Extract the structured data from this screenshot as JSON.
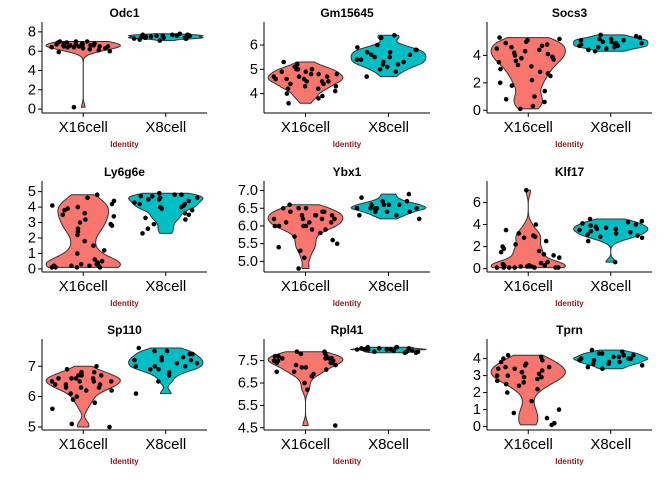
{
  "colors": {
    "group1": "#f8766d",
    "group2": "#00bfc4",
    "axis_title": "#8b1a1a",
    "point": "#000000",
    "outline": "#333333"
  },
  "chart_data": [
    {
      "type": "violin",
      "title": "Odc1",
      "xlabel": "Identity",
      "categories": [
        "X16cell",
        "X8cell"
      ],
      "yticks": [
        "0",
        "2",
        "4",
        "6",
        "8"
      ],
      "ylim": [
        -0.4,
        8.4
      ],
      "series": [
        {
          "group": "X16cell",
          "values": [
            6.4,
            6.5,
            6.6,
            6.7,
            6.8,
            6.9,
            7.0,
            6.3,
            6.5,
            6.6,
            6.8,
            7.0,
            6.2,
            6.4,
            6.6,
            6.7,
            6.9,
            6.1,
            6.5,
            6.8,
            6.3,
            6.6,
            7.0,
            6.4,
            6.7,
            5.9,
            6.0,
            6.5,
            0.2
          ]
        },
        {
          "group": "X8cell",
          "values": [
            7.3,
            7.4,
            7.5,
            7.6,
            7.7,
            7.2,
            7.4,
            7.6,
            7.8,
            7.3,
            7.5,
            7.7,
            7.1,
            7.4,
            7.6,
            7.5,
            7.3,
            7.7,
            7.4,
            7.6
          ]
        }
      ]
    },
    {
      "type": "violin",
      "title": "Gm15645",
      "xlabel": "Identity",
      "categories": [
        "X16cell",
        "X8cell"
      ],
      "yticks": [
        "4",
        "5",
        "6"
      ],
      "ylim": [
        3.2,
        6.7
      ],
      "series": [
        {
          "group": "X16cell",
          "values": [
            4.7,
            4.5,
            4.8,
            4.3,
            5.0,
            4.6,
            4.9,
            4.2,
            4.4,
            5.1,
            4.7,
            3.9,
            4.0,
            4.8,
            5.2,
            4.5,
            4.6,
            4.3,
            5.0,
            4.1,
            4.8,
            3.6,
            4.4,
            4.9,
            5.3,
            4.2,
            4.7,
            4.5,
            3.8,
            4.6,
            5.0
          ]
        },
        {
          "group": "X8cell",
          "values": [
            5.4,
            5.6,
            5.2,
            5.8,
            5.5,
            6.0,
            5.3,
            5.7,
            4.9,
            5.1,
            6.3,
            5.5,
            5.9,
            4.7,
            5.4,
            5.2,
            5.8,
            6.4,
            5.0,
            5.6,
            5.3,
            5.7
          ]
        }
      ]
    },
    {
      "type": "violin",
      "title": "Socs3",
      "xlabel": "Identity",
      "categories": [
        "X16cell",
        "X8cell"
      ],
      "yticks": [
        "0",
        "2",
        "4"
      ],
      "ylim": [
        -0.2,
        6.0
      ],
      "series": [
        {
          "group": "X16cell",
          "values": [
            4.5,
            4.2,
            3.9,
            5.0,
            3.5,
            4.7,
            2.8,
            3.2,
            4.4,
            5.2,
            1.0,
            0.8,
            4.1,
            3.0,
            2.2,
            4.9,
            3.6,
            1.8,
            0.3,
            4.3,
            5.1,
            2.5,
            3.8,
            0.6,
            4.6,
            3.3,
            1.4,
            4.0,
            2.0,
            5.3,
            3.7,
            4.8,
            0.1,
            2.7
          ]
        },
        {
          "group": "X8cell",
          "values": [
            4.7,
            4.9,
            5.1,
            4.5,
            5.3,
            4.8,
            4.6,
            5.0,
            5.2,
            4.4,
            4.9,
            5.4,
            4.7,
            5.0,
            4.3,
            5.1,
            4.8,
            5.5,
            4.6,
            5.2
          ]
        }
      ]
    },
    {
      "type": "violin",
      "title": "Ly6g6e",
      "xlabel": "Identity",
      "categories": [
        "X16cell",
        "X8cell"
      ],
      "yticks": [
        "0",
        "1",
        "2",
        "3",
        "4",
        "5"
      ],
      "ylim": [
        -0.2,
        5.3
      ],
      "series": [
        {
          "group": "X16cell",
          "values": [
            0.1,
            0.2,
            3.5,
            4.2,
            0.3,
            2.8,
            3.9,
            0.1,
            4.6,
            1.5,
            0.5,
            3.2,
            2.4,
            4.0,
            0.2,
            3.6,
            1.0,
            4.4,
            0.1,
            2.9,
            3.4,
            0.3,
            1.8,
            4.1,
            0.2,
            3.0,
            0.6,
            4.8,
            2.2,
            0.1,
            3.8,
            0.4,
            1.2,
            2.6,
            0.2
          ]
        },
        {
          "group": "X8cell",
          "values": [
            4.3,
            4.0,
            4.6,
            3.8,
            4.8,
            4.2,
            3.5,
            4.5,
            4.9,
            3.2,
            4.1,
            4.7,
            2.6,
            4.4,
            3.9,
            4.6,
            2.3,
            4.2,
            4.8,
            3.6,
            4.0,
            4.5,
            3.3,
            4.7,
            2.9
          ]
        }
      ]
    },
    {
      "type": "violin",
      "title": "Ybx1",
      "xlabel": "Identity",
      "categories": [
        "X16cell",
        "X8cell"
      ],
      "yticks": [
        "5.0",
        "5.5",
        "6.0",
        "6.5",
        "7.0"
      ],
      "ylim": [
        4.7,
        7.1
      ],
      "series": [
        {
          "group": "X16cell",
          "values": [
            6.2,
            6.4,
            6.0,
            6.3,
            6.5,
            6.1,
            5.9,
            6.6,
            6.2,
            5.7,
            5.5,
            6.3,
            6.0,
            6.4,
            5.6,
            6.1,
            6.5,
            5.8,
            6.2,
            5.3,
            5.1,
            6.0,
            6.3,
            6.4,
            4.8,
            6.1,
            5.9,
            6.5,
            6.2,
            5.4,
            6.0,
            6.3
          ]
        },
        {
          "group": "X8cell",
          "values": [
            6.5,
            6.6,
            6.4,
            6.7,
            6.5,
            6.3,
            6.6,
            6.8,
            6.5,
            6.4,
            6.2,
            6.6,
            6.9,
            6.5,
            6.3,
            6.7,
            6.6,
            6.4,
            6.5
          ]
        }
      ]
    },
    {
      "type": "violin",
      "title": "Klf17",
      "xlabel": "Identity",
      "categories": [
        "X16cell",
        "X8cell"
      ],
      "yticks": [
        "0",
        "2",
        "4",
        "6"
      ],
      "ylim": [
        -0.3,
        7.4
      ],
      "series": [
        {
          "group": "X16cell",
          "values": [
            0.1,
            0.2,
            0.3,
            0.1,
            1.5,
            2.8,
            0.2,
            0.4,
            3.2,
            1.0,
            0.1,
            2.2,
            4.0,
            0.3,
            1.8,
            0.1,
            2.9,
            0.2,
            3.5,
            1.2,
            0.1,
            0.5,
            2.5,
            0.3,
            7.1,
            1.6,
            0.2,
            3.0,
            0.1,
            2.0,
            0.6,
            0.1,
            1.3
          ]
        },
        {
          "group": "X8cell",
          "values": [
            3.5,
            3.8,
            3.2,
            4.0,
            2.8,
            3.6,
            4.3,
            3.0,
            3.9,
            2.5,
            3.4,
            4.1,
            3.7,
            0.6,
            3.3,
            4.5,
            2.9,
            3.6,
            3.1,
            4.2
          ]
        }
      ]
    },
    {
      "type": "violin",
      "title": "Sp110",
      "xlabel": "Identity",
      "categories": [
        "X16cell",
        "X8cell"
      ],
      "yticks": [
        "5",
        "6",
        "7"
      ],
      "ylim": [
        4.9,
        7.7
      ],
      "series": [
        {
          "group": "X16cell",
          "values": [
            6.5,
            6.6,
            6.4,
            6.7,
            6.3,
            6.8,
            6.5,
            6.2,
            6.9,
            6.6,
            6.0,
            5.8,
            6.4,
            6.7,
            6.1,
            6.5,
            7.0,
            6.3,
            5.9,
            6.6,
            6.8,
            5.1,
            5.0,
            6.4,
            6.2,
            6.7,
            6.5,
            5.6,
            6.3,
            6.6
          ]
        },
        {
          "group": "X8cell",
          "values": [
            7.2,
            7.0,
            7.4,
            6.9,
            7.1,
            7.5,
            6.8,
            7.3,
            7.6,
            7.0,
            6.5,
            7.2,
            6.1,
            7.4,
            7.1,
            6.7,
            7.3,
            7.0,
            7.5,
            6.9,
            7.2
          ]
        }
      ]
    },
    {
      "type": "violin",
      "title": "Rpl41",
      "xlabel": "Identity",
      "categories": [
        "X16cell",
        "X8cell"
      ],
      "yticks": [
        "4.5",
        "5.5",
        "6.5",
        "7.5"
      ],
      "ylim": [
        4.4,
        8.2
      ],
      "series": [
        {
          "group": "X16cell",
          "values": [
            7.5,
            7.7,
            7.3,
            7.6,
            7.8,
            7.4,
            7.2,
            7.9,
            7.6,
            7.0,
            6.8,
            7.5,
            7.7,
            7.1,
            6.5,
            7.4,
            7.8,
            7.3,
            6.2,
            7.6,
            4.6,
            7.5,
            7.0,
            7.7,
            6.9,
            7.4,
            7.9,
            7.2,
            7.6
          ]
        },
        {
          "group": "X8cell",
          "values": [
            8.0,
            7.9,
            8.1,
            7.95,
            8.05,
            7.85,
            8.0,
            8.1,
            7.9,
            8.0,
            7.95,
            8.05,
            8.1,
            7.9,
            8.0,
            7.85,
            8.0,
            8.05
          ]
        }
      ]
    },
    {
      "type": "violin",
      "title": "Tprn",
      "xlabel": "Identity",
      "categories": [
        "X16cell",
        "X8cell"
      ],
      "yticks": [
        "0",
        "1",
        "2",
        "3",
        "4"
      ],
      "ylim": [
        -0.2,
        4.8
      ],
      "series": [
        {
          "group": "X16cell",
          "values": [
            3.0,
            3.5,
            2.8,
            3.2,
            4.0,
            2.5,
            3.8,
            2.2,
            3.4,
            1.0,
            0.5,
            3.6,
            2.9,
            4.2,
            3.1,
            2.6,
            0.2,
            3.3,
            3.9,
            2.4,
            3.7,
            1.5,
            3.0,
            0.8,
            4.1,
            2.7,
            3.4,
            0.1,
            2.0,
            3.5,
            2.9,
            3.2
          ]
        },
        {
          "group": "X8cell",
          "values": [
            3.9,
            4.1,
            3.7,
            4.3,
            4.0,
            3.6,
            4.4,
            3.8,
            4.2,
            3.5,
            4.0,
            4.5,
            3.9,
            4.1,
            3.4,
            4.3,
            3.8,
            4.0,
            4.2,
            3.7
          ]
        }
      ]
    }
  ]
}
